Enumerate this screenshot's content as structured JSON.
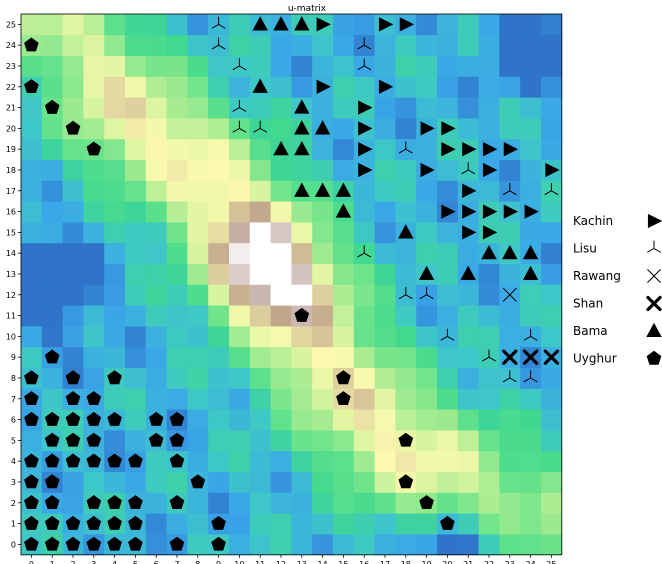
{
  "chart_data": {
    "type": "heatmap",
    "title": "u-matrix",
    "xlabel": "",
    "ylabel": "",
    "x_ticks": [
      "0",
      "1",
      "2",
      "3",
      "4",
      "5",
      "6",
      "7",
      "8",
      "9",
      "10",
      "11",
      "12",
      "13",
      "14",
      "15",
      "16",
      "17",
      "18",
      "19",
      "20",
      "21",
      "22",
      "23",
      "24",
      "25"
    ],
    "y_ticks": [
      "0",
      "1",
      "2",
      "3",
      "4",
      "5",
      "6",
      "7",
      "8",
      "9",
      "10",
      "11",
      "12",
      "13",
      "14",
      "15",
      "16",
      "17",
      "18",
      "19",
      "20",
      "21",
      "22",
      "23",
      "24",
      "25"
    ],
    "grid_size": [
      26,
      26
    ],
    "colormap": [
      "#2f74c9",
      "#3aa7e8",
      "#3ec7c8",
      "#3ed88f",
      "#6ee48a",
      "#a8ec92",
      "#e6f6a4",
      "#fdfab0",
      "#d8c79a",
      "#b99c86",
      "#cbb7b3",
      "#ffffff"
    ],
    "legend_position": "right",
    "legend": [
      {
        "name": "Kachin",
        "marker": "triangle-right"
      },
      {
        "name": "Lisu",
        "marker": "tri-down"
      },
      {
        "name": "Rawang",
        "marker": "x"
      },
      {
        "name": "Shan",
        "marker": "x-bold"
      },
      {
        "name": "Bama",
        "marker": "triangle-up"
      },
      {
        "name": "Uyghur",
        "marker": "pentagon"
      }
    ],
    "series": [
      {
        "name": "Kachin",
        "marker": "triangle-right",
        "points": [
          [
            14,
            25
          ],
          [
            17,
            25
          ],
          [
            18,
            25
          ],
          [
            14,
            22
          ],
          [
            17,
            22
          ],
          [
            16,
            21
          ],
          [
            16,
            20
          ],
          [
            19,
            20
          ],
          [
            20,
            20
          ],
          [
            16,
            19
          ],
          [
            20,
            19
          ],
          [
            21,
            19
          ],
          [
            22,
            19
          ],
          [
            23,
            19
          ],
          [
            16,
            18
          ],
          [
            19,
            18
          ],
          [
            22,
            18
          ],
          [
            25,
            18
          ],
          [
            21,
            17
          ],
          [
            20,
            16
          ],
          [
            21,
            16
          ],
          [
            22,
            16
          ],
          [
            23,
            16
          ],
          [
            24,
            16
          ],
          [
            21,
            15
          ],
          [
            22,
            15
          ]
        ]
      },
      {
        "name": "Lisu",
        "marker": "tri-down",
        "points": [
          [
            9,
            25
          ],
          [
            9,
            24
          ],
          [
            16,
            24
          ],
          [
            10,
            23
          ],
          [
            16,
            23
          ],
          [
            10,
            21
          ],
          [
            10,
            20
          ],
          [
            11,
            20
          ],
          [
            18,
            19
          ],
          [
            21,
            18
          ],
          [
            23,
            17
          ],
          [
            25,
            17
          ],
          [
            16,
            14
          ],
          [
            18,
            12
          ],
          [
            19,
            12
          ],
          [
            20,
            10
          ],
          [
            24,
            10
          ],
          [
            22,
            9
          ],
          [
            23,
            8
          ],
          [
            24,
            8
          ]
        ]
      },
      {
        "name": "Rawang",
        "marker": "x",
        "points": [
          [
            23,
            12
          ]
        ]
      },
      {
        "name": "Shan",
        "marker": "x-bold",
        "points": [
          [
            23,
            9
          ],
          [
            24,
            9
          ],
          [
            25,
            9
          ]
        ]
      },
      {
        "name": "Bama",
        "marker": "triangle-up",
        "points": [
          [
            11,
            25
          ],
          [
            12,
            25
          ],
          [
            13,
            25
          ],
          [
            11,
            22
          ],
          [
            13,
            21
          ],
          [
            13,
            20
          ],
          [
            14,
            20
          ],
          [
            12,
            19
          ],
          [
            13,
            19
          ],
          [
            13,
            17
          ],
          [
            14,
            17
          ],
          [
            15,
            17
          ],
          [
            15,
            16
          ],
          [
            18,
            15
          ],
          [
            22,
            14
          ],
          [
            23,
            14
          ],
          [
            24,
            14
          ],
          [
            19,
            13
          ],
          [
            21,
            13
          ],
          [
            24,
            13
          ]
        ]
      },
      {
        "name": "Uyghur",
        "marker": "pentagon",
        "points": [
          [
            0,
            24
          ],
          [
            0,
            22
          ],
          [
            1,
            21
          ],
          [
            2,
            20
          ],
          [
            3,
            19
          ],
          [
            13,
            11
          ],
          [
            1,
            9
          ],
          [
            0,
            8
          ],
          [
            2,
            8
          ],
          [
            4,
            8
          ],
          [
            15,
            8
          ],
          [
            0,
            7
          ],
          [
            2,
            7
          ],
          [
            3,
            7
          ],
          [
            15,
            7
          ],
          [
            0,
            6
          ],
          [
            1,
            6
          ],
          [
            2,
            6
          ],
          [
            3,
            6
          ],
          [
            4,
            6
          ],
          [
            6,
            6
          ],
          [
            7,
            6
          ],
          [
            1,
            5
          ],
          [
            2,
            5
          ],
          [
            3,
            5
          ],
          [
            6,
            5
          ],
          [
            7,
            5
          ],
          [
            18,
            5
          ],
          [
            0,
            4
          ],
          [
            1,
            4
          ],
          [
            2,
            4
          ],
          [
            3,
            4
          ],
          [
            4,
            4
          ],
          [
            5,
            4
          ],
          [
            7,
            4
          ],
          [
            0,
            3
          ],
          [
            1,
            3
          ],
          [
            8,
            3
          ],
          [
            18,
            3
          ],
          [
            0,
            2
          ],
          [
            1,
            2
          ],
          [
            3,
            2
          ],
          [
            4,
            2
          ],
          [
            5,
            2
          ],
          [
            7,
            2
          ],
          [
            19,
            2
          ],
          [
            0,
            1
          ],
          [
            1,
            1
          ],
          [
            2,
            1
          ],
          [
            3,
            1
          ],
          [
            4,
            1
          ],
          [
            5,
            1
          ],
          [
            9,
            1
          ],
          [
            20,
            1
          ],
          [
            0,
            0
          ],
          [
            1,
            0
          ],
          [
            2,
            0
          ],
          [
            3,
            0
          ],
          [
            4,
            0
          ],
          [
            5,
            0
          ],
          [
            7,
            0
          ],
          [
            9,
            0
          ]
        ]
      }
    ]
  }
}
